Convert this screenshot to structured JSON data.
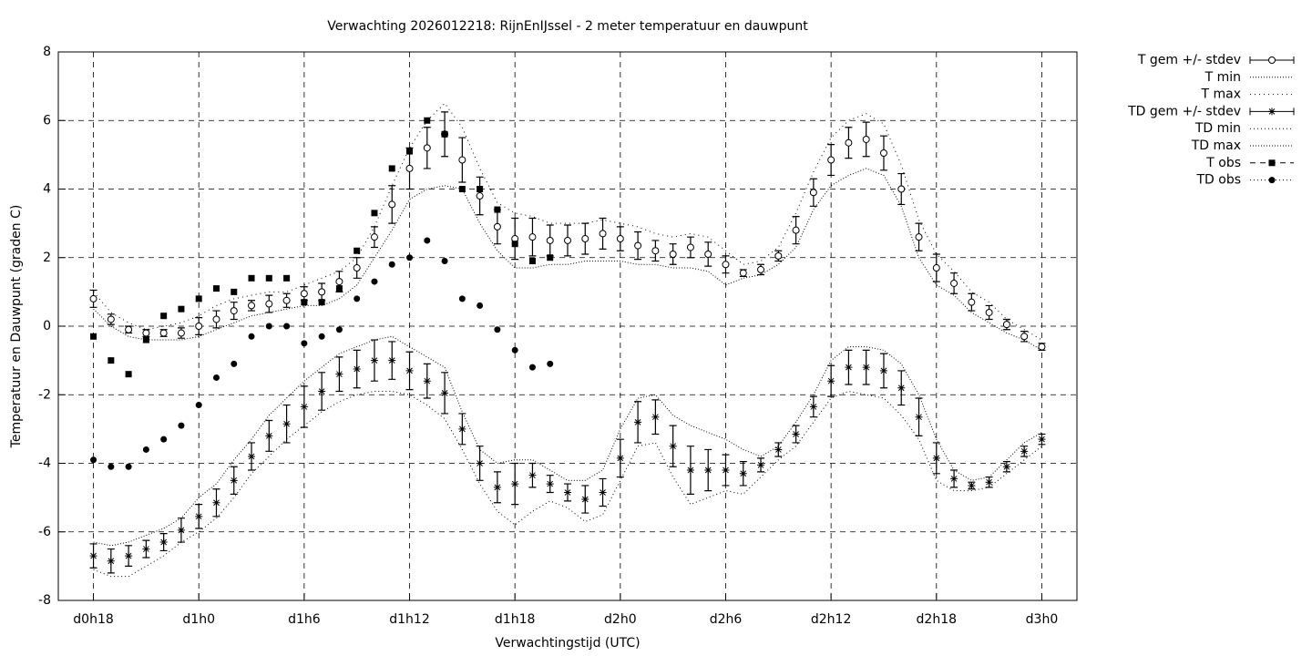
{
  "chart_data": {
    "type": "errorbar-line",
    "title": "Verwachting 2026012218: RijnEnIJssel - 2 meter temperatuur en dauwpunt",
    "x_label": "Verwachtingstijd (UTC)",
    "y_label": "Temperatuur en Dauwpunt (graden C)",
    "x": [
      18,
      19,
      20,
      21,
      22,
      23,
      24,
      25,
      26,
      27,
      28,
      29,
      30,
      31,
      32,
      33,
      34,
      35,
      36,
      37,
      38,
      39,
      40,
      41,
      42,
      43,
      44,
      45,
      46,
      47,
      48,
      49,
      50,
      51,
      52,
      53,
      54,
      55,
      56,
      57,
      58,
      59,
      60,
      61,
      62,
      63,
      64,
      65,
      66,
      67,
      68,
      69,
      70,
      71,
      72
    ],
    "xlim": [
      16,
      74
    ],
    "xticks": [
      {
        "value": 18,
        "label": "d0h18"
      },
      {
        "value": 24,
        "label": "d1h0"
      },
      {
        "value": 30,
        "label": "d1h6"
      },
      {
        "value": 36,
        "label": "d1h12"
      },
      {
        "value": 42,
        "label": "d1h18"
      },
      {
        "value": 48,
        "label": "d2h0"
      },
      {
        "value": 54,
        "label": "d2h6"
      },
      {
        "value": 60,
        "label": "d2h12"
      },
      {
        "value": 66,
        "label": "d2h18"
      },
      {
        "value": 72,
        "label": "d3h0"
      }
    ],
    "ylim": [
      -8,
      8
    ],
    "yticks": [
      -8,
      -6,
      -4,
      -2,
      0,
      2,
      4,
      6,
      8
    ],
    "grid": true,
    "legend": "outside-right-top",
    "series": [
      {
        "name": "T gem +/- stdev",
        "color": "#000000",
        "style": "errorbars",
        "marker": "open-circle",
        "values": [
          0.8,
          0.2,
          -0.1,
          -0.2,
          -0.2,
          -0.2,
          0.0,
          0.2,
          0.45,
          0.6,
          0.65,
          0.75,
          0.95,
          1.0,
          1.3,
          1.7,
          2.6,
          3.55,
          4.6,
          5.2,
          5.6,
          4.85,
          3.8,
          2.9,
          2.55,
          2.6,
          2.5,
          2.5,
          2.55,
          2.7,
          2.55,
          2.35,
          2.2,
          2.1,
          2.3,
          2.1,
          1.8,
          1.55,
          1.65,
          2.05,
          2.8,
          3.9,
          4.85,
          5.35,
          5.45,
          5.05,
          4.0,
          2.6,
          1.7,
          1.25,
          0.7,
          0.4,
          0.05,
          -0.3,
          -0.6
        ],
        "errors": [
          0.25,
          0.15,
          0.1,
          0.1,
          0.1,
          0.15,
          0.25,
          0.25,
          0.25,
          0.15,
          0.25,
          0.2,
          0.2,
          0.25,
          0.3,
          0.3,
          0.3,
          0.55,
          0.6,
          0.6,
          0.65,
          0.65,
          0.55,
          0.5,
          0.6,
          0.55,
          0.45,
          0.45,
          0.45,
          0.45,
          0.35,
          0.4,
          0.3,
          0.3,
          0.3,
          0.35,
          0.25,
          0.1,
          0.15,
          0.15,
          0.4,
          0.4,
          0.45,
          0.45,
          0.5,
          0.5,
          0.45,
          0.4,
          0.4,
          0.3,
          0.25,
          0.2,
          0.15,
          0.15,
          0.1
        ]
      },
      {
        "name": "T min",
        "color": "#000000",
        "style": "lines",
        "values": [
          0.5,
          0.0,
          -0.3,
          -0.4,
          -0.4,
          -0.4,
          -0.3,
          -0.1,
          0.1,
          0.3,
          0.4,
          0.5,
          0.6,
          0.6,
          0.8,
          1.2,
          2.0,
          2.8,
          3.7,
          4.0,
          4.1,
          4.0,
          3.0,
          2.2,
          1.7,
          1.7,
          1.8,
          1.8,
          1.9,
          1.9,
          1.9,
          1.8,
          1.8,
          1.7,
          1.7,
          1.6,
          1.2,
          1.4,
          1.5,
          1.8,
          2.3,
          3.4,
          4.1,
          4.4,
          4.6,
          4.4,
          3.5,
          2.0,
          1.2,
          0.9,
          0.4,
          0.1,
          -0.2,
          -0.4,
          -0.7
        ]
      },
      {
        "name": "T max",
        "color": "#000000",
        "style": "lines",
        "values": [
          1.0,
          0.4,
          0.1,
          -0.1,
          0.0,
          0.1,
          0.3,
          0.6,
          0.8,
          0.9,
          1.0,
          1.0,
          1.2,
          1.4,
          1.6,
          2.0,
          2.9,
          4.1,
          5.2,
          6.0,
          6.5,
          5.8,
          4.6,
          3.6,
          3.3,
          3.2,
          3.0,
          3.0,
          3.0,
          3.1,
          3.0,
          2.9,
          2.7,
          2.6,
          2.7,
          2.6,
          2.2,
          1.8,
          1.9,
          2.3,
          3.3,
          4.5,
          5.5,
          6.0,
          6.2,
          5.9,
          4.7,
          3.1,
          2.1,
          1.6,
          1.0,
          0.7,
          0.2,
          -0.1,
          -0.4
        ]
      },
      {
        "name": "TD gem +/- stdev",
        "color": "#000000",
        "style": "errorbars",
        "marker": "asterisk",
        "values": [
          -6.7,
          -6.85,
          -6.7,
          -6.5,
          -6.3,
          -5.95,
          -5.55,
          -5.15,
          -4.5,
          -3.8,
          -3.2,
          -2.85,
          -2.35,
          -1.9,
          -1.4,
          -1.25,
          -1.0,
          -1.0,
          -1.3,
          -1.6,
          -1.95,
          -3.0,
          -4.0,
          -4.7,
          -4.6,
          -4.35,
          -4.6,
          -4.85,
          -5.05,
          -4.85,
          -3.85,
          -2.8,
          -2.65,
          -3.5,
          -4.2,
          -4.2,
          -4.2,
          -4.3,
          -4.05,
          -3.6,
          -3.15,
          -2.35,
          -1.6,
          -1.2,
          -1.2,
          -1.3,
          -1.8,
          -2.65,
          -3.85,
          -4.45,
          -4.65,
          -4.55,
          -4.1,
          -3.65,
          -3.3
        ],
        "errors": [
          0.35,
          0.35,
          0.3,
          0.25,
          0.25,
          0.35,
          0.35,
          0.4,
          0.4,
          0.4,
          0.45,
          0.55,
          0.6,
          0.55,
          0.5,
          0.55,
          0.6,
          0.55,
          0.55,
          0.5,
          0.6,
          0.45,
          0.5,
          0.45,
          0.6,
          0.35,
          0.25,
          0.25,
          0.4,
          0.4,
          0.55,
          0.6,
          0.5,
          0.6,
          0.7,
          0.6,
          0.45,
          0.35,
          0.2,
          0.2,
          0.25,
          0.3,
          0.45,
          0.5,
          0.5,
          0.5,
          0.5,
          0.55,
          0.45,
          0.25,
          0.1,
          0.15,
          0.15,
          0.15,
          0.15
        ]
      },
      {
        "name": "TD min",
        "color": "#000000",
        "style": "lines",
        "values": [
          -7.1,
          -7.3,
          -7.3,
          -7.0,
          -6.7,
          -6.3,
          -6.0,
          -5.6,
          -5.0,
          -4.3,
          -3.8,
          -3.3,
          -2.9,
          -2.5,
          -2.2,
          -2.0,
          -1.9,
          -1.9,
          -2.0,
          -2.3,
          -2.7,
          -3.6,
          -4.6,
          -5.4,
          -5.8,
          -5.4,
          -5.1,
          -5.3,
          -5.7,
          -5.5,
          -4.5,
          -3.5,
          -3.4,
          -4.4,
          -5.2,
          -5.0,
          -4.8,
          -4.9,
          -4.4,
          -3.9,
          -3.5,
          -2.8,
          -2.1,
          -1.9,
          -2.0,
          -2.1,
          -2.6,
          -3.3,
          -4.5,
          -4.8,
          -4.8,
          -4.7,
          -4.3,
          -3.9,
          -3.5
        ]
      },
      {
        "name": "TD max",
        "color": "#000000",
        "style": "lines",
        "values": [
          -6.3,
          -6.4,
          -6.3,
          -6.1,
          -5.9,
          -5.6,
          -5.0,
          -4.6,
          -3.9,
          -3.3,
          -2.6,
          -2.1,
          -1.6,
          -1.2,
          -0.8,
          -0.6,
          -0.4,
          -0.3,
          -0.6,
          -0.9,
          -1.2,
          -2.5,
          -3.6,
          -4.0,
          -3.9,
          -3.9,
          -4.2,
          -4.5,
          -4.5,
          -4.2,
          -3.0,
          -2.1,
          -2.0,
          -2.6,
          -2.9,
          -3.1,
          -3.3,
          -3.6,
          -3.8,
          -3.5,
          -2.8,
          -2.0,
          -1.0,
          -0.6,
          -0.6,
          -0.7,
          -1.1,
          -2.0,
          -3.3,
          -4.2,
          -4.5,
          -4.4,
          -3.9,
          -3.4,
          -3.1
        ]
      },
      {
        "name": "T obs",
        "color": "#000000",
        "style": "points",
        "marker": "square",
        "values": [
          -0.3,
          -1.0,
          -1.4,
          -0.4,
          0.3,
          0.5,
          0.8,
          1.1,
          1.0,
          1.4,
          1.4,
          1.4,
          0.7,
          0.7,
          1.1,
          2.2,
          3.3,
          4.6,
          5.1,
          6.0,
          5.6,
          4.0,
          4.0,
          3.4,
          2.4,
          1.9,
          2.0,
          null,
          null,
          null,
          null,
          null,
          null,
          null,
          null,
          null,
          null,
          null,
          null,
          null,
          null,
          null,
          null,
          null,
          null,
          null,
          null,
          null,
          null,
          null,
          null,
          null,
          null,
          null,
          null
        ]
      },
      {
        "name": "TD obs",
        "color": "#000000",
        "style": "points",
        "marker": "dot",
        "values": [
          -3.9,
          -4.1,
          -4.1,
          -3.6,
          -3.3,
          -2.9,
          -2.3,
          -1.5,
          -1.1,
          -0.3,
          0.0,
          0.0,
          -0.5,
          -0.3,
          -0.1,
          0.8,
          1.3,
          1.8,
          2.0,
          2.5,
          1.9,
          0.8,
          0.6,
          -0.1,
          -0.7,
          -1.2,
          -1.1,
          null,
          null,
          null,
          null,
          null,
          null,
          null,
          null,
          null,
          null,
          null,
          null,
          null,
          null,
          null,
          null,
          null,
          null,
          null,
          null,
          null,
          null,
          null,
          null,
          null,
          null,
          null,
          null
        ]
      }
    ]
  }
}
